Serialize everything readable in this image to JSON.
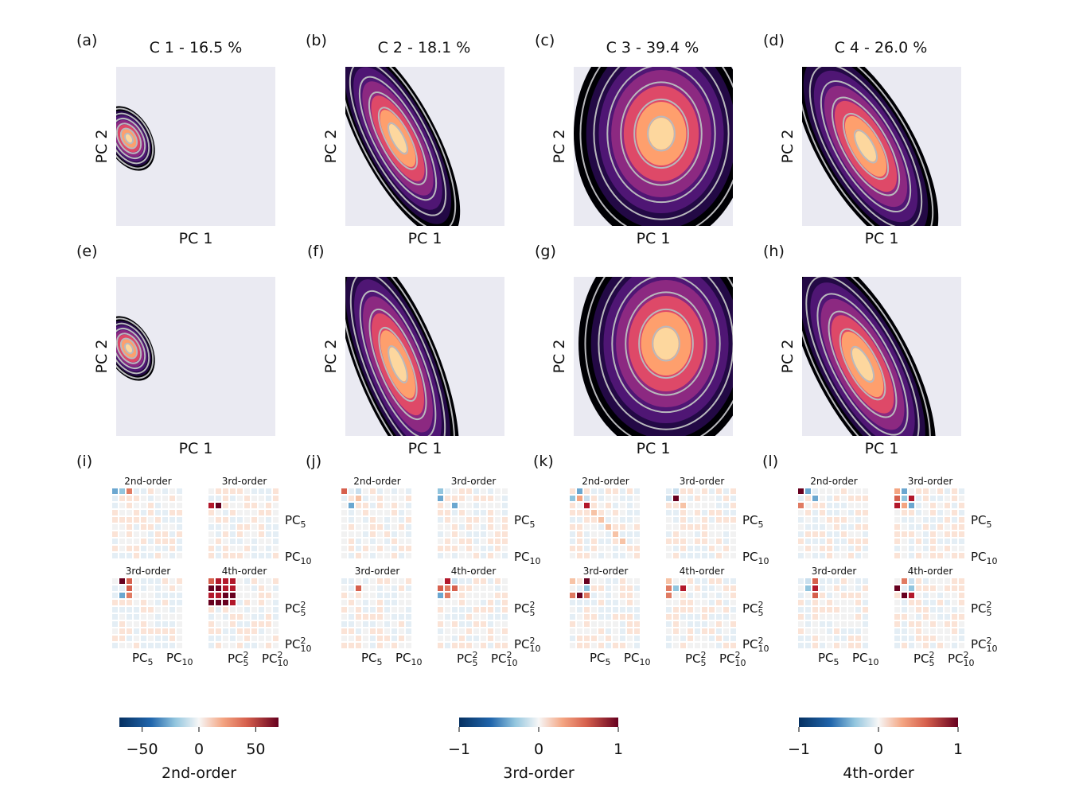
{
  "figure": {
    "panel_letters": [
      "(a)",
      "(b)",
      "(c)",
      "(d)",
      "(e)",
      "(f)",
      "(g)",
      "(h)",
      "(i)",
      "(j)",
      "(k)",
      "(l)"
    ],
    "cluster_titles": [
      "C 1 - 16.5 %",
      "C 2 - 18.1 %",
      "C 3 - 39.4 %",
      "C 4 - 26.0 %"
    ],
    "x_axis_label": "PC 1",
    "y_axis_label": "PC 2",
    "matrix_titles": [
      "2nd-order",
      "3rd-order",
      "3rd-order",
      "4th-order"
    ],
    "pc5_label": "PC",
    "pc5_sub": "5",
    "pc10_sub": "10",
    "square_sup": "2",
    "colorbars": [
      {
        "label": "2nd-order",
        "ticks": [
          "−50",
          "0",
          "50"
        ],
        "range": [
          -70,
          70
        ],
        "tick_values": [
          -50,
          0,
          50
        ]
      },
      {
        "label": "3rd-order",
        "ticks": [
          "−1",
          "0",
          "1"
        ],
        "range": [
          -1,
          1
        ],
        "tick_values": [
          -1,
          0,
          1
        ]
      },
      {
        "label": "4th-order",
        "ticks": [
          "−1",
          "0",
          "1"
        ],
        "range": [
          -1,
          1
        ],
        "tick_values": [
          -1,
          0,
          1
        ]
      }
    ],
    "colors": {
      "axes_bg": "#eaeaf2",
      "contour": "#b9b9bd",
      "negative": "#2166ac",
      "positive": "#b2182b",
      "neutral": "#f7f7f7"
    }
  },
  "chart_data": [
    {
      "type": "heatmap",
      "panel": "(a)",
      "title": "C 1 - 16.5 %",
      "xlabel": "PC 1",
      "ylabel": "PC 2",
      "density_center": [
        -0.85,
        0.55
      ],
      "shape": "small blob upper-left"
    },
    {
      "type": "heatmap",
      "panel": "(b)",
      "title": "C 2 - 18.1 %",
      "xlabel": "PC 1",
      "ylabel": "PC 2",
      "density_center": [
        -0.55,
        0.1
      ],
      "shape": "elongated diagonal band"
    },
    {
      "type": "heatmap",
      "panel": "(c)",
      "title": "C 3 - 39.4 %",
      "xlabel": "PC 1",
      "ylabel": "PC 2",
      "density_center": [
        0.05,
        0.3
      ],
      "shape": "broad oval"
    },
    {
      "type": "heatmap",
      "panel": "(d)",
      "title": "C 4 - 26.0 %",
      "xlabel": "PC 1",
      "ylabel": "PC 2",
      "density_center": [
        -0.25,
        0.0
      ],
      "shape": "elongated diagonal band"
    },
    {
      "type": "heatmap",
      "panel": "(e)",
      "title": "",
      "xlabel": "PC 1",
      "ylabel": "PC 2",
      "density_center": [
        -0.85,
        0.55
      ],
      "shape": "small blob upper-left"
    },
    {
      "type": "heatmap",
      "panel": "(f)",
      "title": "",
      "xlabel": "PC 1",
      "ylabel": "PC 2",
      "density_center": [
        -0.45,
        -0.1
      ],
      "shape": "elongated diagonal band"
    },
    {
      "type": "heatmap",
      "panel": "(g)",
      "title": "",
      "xlabel": "PC 1",
      "ylabel": "PC 2",
      "density_center": [
        0.0,
        0.2
      ],
      "shape": "broad oval"
    },
    {
      "type": "heatmap",
      "panel": "(h)",
      "title": "",
      "xlabel": "PC 1",
      "ylabel": "PC 2",
      "density_center": [
        -0.25,
        -0.1
      ],
      "shape": "elongated diagonal band"
    },
    {
      "type": "heatmap",
      "panel": "(i)",
      "subplots": [
        "2nd-order",
        "3rd-order",
        "3rd-order",
        "4th-order"
      ],
      "matrix_size": 10
    },
    {
      "type": "heatmap",
      "panel": "(j)",
      "subplots": [
        "2nd-order",
        "3rd-order",
        "3rd-order",
        "4th-order"
      ],
      "matrix_size": 10
    },
    {
      "type": "heatmap",
      "panel": "(k)",
      "subplots": [
        "2nd-order",
        "3rd-order",
        "3rd-order",
        "4th-order"
      ],
      "matrix_size": 10
    },
    {
      "type": "heatmap",
      "panel": "(l)",
      "subplots": [
        "2nd-order",
        "3rd-order",
        "3rd-order",
        "4th-order"
      ],
      "matrix_size": 10
    }
  ]
}
